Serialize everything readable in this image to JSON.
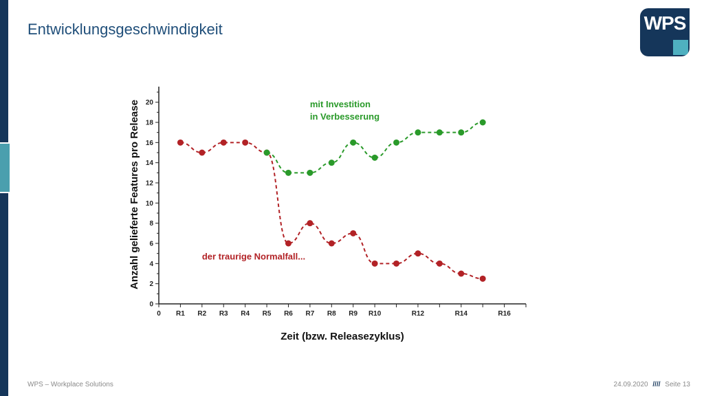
{
  "slide": {
    "title": "Entwicklungsgeschwindigkeit",
    "logo_text": "WPS",
    "footer_left": "WPS – Workplace Solutions",
    "footer_date": "24.09.2020",
    "footer_sep": "////",
    "footer_page": "Seite 13"
  },
  "colors": {
    "navy": "#15365a",
    "teal": "#4fb0c0",
    "green": "#2a9a2a",
    "red": "#b22226"
  },
  "chart_data": {
    "type": "line",
    "xlabel": "Zeit (bzw. Releasezyklus)",
    "ylabel": "Anzahl gelieferte Features pro Release",
    "xlim": [
      0,
      17
    ],
    "ylim": [
      0,
      21
    ],
    "x_ticks": [
      {
        "x": 0,
        "label": "0"
      },
      {
        "x": 1,
        "label": "R1"
      },
      {
        "x": 2,
        "label": "R2"
      },
      {
        "x": 3,
        "label": "R3"
      },
      {
        "x": 4,
        "label": "R4"
      },
      {
        "x": 5,
        "label": "R5"
      },
      {
        "x": 6,
        "label": "R6"
      },
      {
        "x": 7,
        "label": "R7"
      },
      {
        "x": 8,
        "label": "R8"
      },
      {
        "x": 9,
        "label": "R9"
      },
      {
        "x": 10,
        "label": "R10"
      },
      {
        "x": 12,
        "label": "R12"
      },
      {
        "x": 14,
        "label": "R14"
      },
      {
        "x": 16,
        "label": "R16"
      }
    ],
    "y_ticks": [
      0,
      2,
      4,
      6,
      8,
      10,
      12,
      14,
      16,
      18,
      20
    ],
    "series": [
      {
        "color": "#b22226",
        "x": [
          1,
          2,
          3,
          4,
          5,
          6,
          7,
          8,
          9,
          10,
          11,
          12,
          13,
          14,
          15
        ],
        "y": [
          16,
          15,
          16,
          16,
          15,
          6,
          8,
          6,
          7,
          4,
          4,
          5,
          4,
          3,
          2.5
        ]
      },
      {
        "color": "#2a9a2a",
        "x": [
          5,
          6,
          7,
          8,
          9,
          10,
          11,
          12,
          13,
          14,
          15
        ],
        "y": [
          15,
          13,
          13,
          14,
          16,
          14.5,
          16,
          17,
          17,
          17,
          18
        ]
      }
    ],
    "annotations": [
      {
        "lines": [
          "mit Investition",
          "in Verbesserung"
        ],
        "color": "#2a9a2a",
        "x": 7,
        "y": 19.5
      },
      {
        "lines": [
          "der traurige Normalfall..."
        ],
        "color": "#b22226",
        "x": 2,
        "y": 4.4
      }
    ],
    "grid": false
  }
}
